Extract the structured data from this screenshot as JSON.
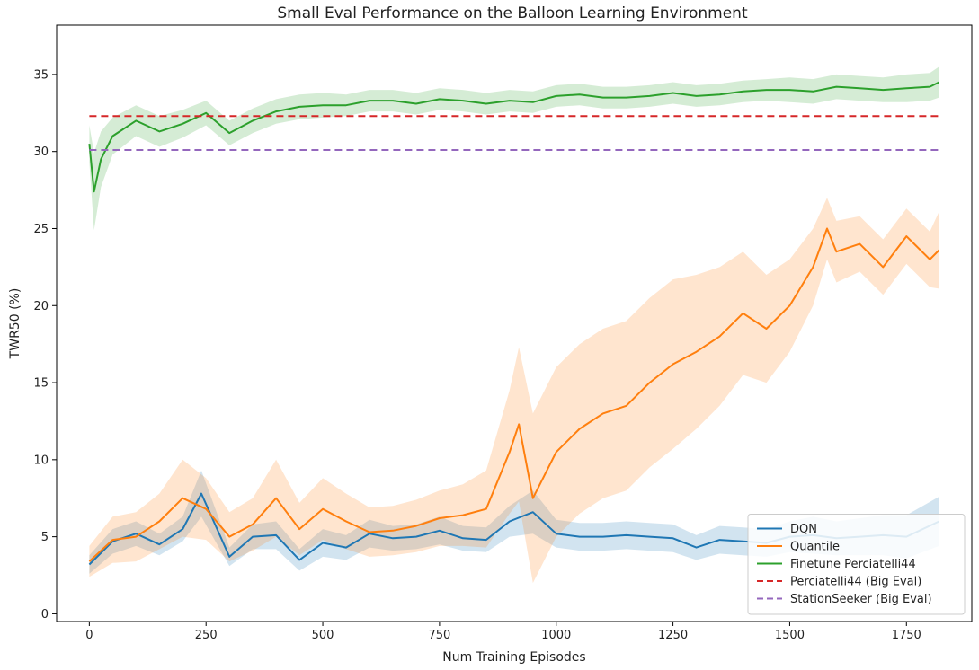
{
  "chart_data": {
    "type": "line",
    "title": "Small Eval Performance on the Balloon Learning Environment",
    "xlabel": "Num Training Episodes",
    "ylabel": "TWR50 (%)",
    "xlim": [
      -70,
      1890
    ],
    "ylim": [
      -0.5,
      38.2
    ],
    "xticks": [
      0,
      250,
      500,
      750,
      1000,
      1250,
      1500,
      1750
    ],
    "yticks": [
      0,
      5,
      10,
      15,
      20,
      25,
      30,
      35
    ],
    "grid": false,
    "legend_position": "bottom-right",
    "colors": {
      "DQN": "#1f77b4",
      "Quantile": "#ff7f0e",
      "Finetune Perciatelli44": "#2ca02c",
      "Perciatelli44 (Big Eval)": "#d62728",
      "StationSeeker (Big Eval)": "#9467bd"
    },
    "series": [
      {
        "name": "DQN",
        "style": "solid",
        "x": [
          0,
          50,
          100,
          150,
          200,
          240,
          300,
          350,
          400,
          450,
          500,
          550,
          600,
          650,
          700,
          750,
          800,
          850,
          900,
          950,
          1000,
          1050,
          1100,
          1150,
          1200,
          1250,
          1300,
          1350,
          1400,
          1450,
          1500,
          1550,
          1600,
          1650,
          1700,
          1750,
          1820
        ],
        "y": [
          3.2,
          4.7,
          5.2,
          4.5,
          5.5,
          7.8,
          3.7,
          5.0,
          5.1,
          3.5,
          4.6,
          4.3,
          5.2,
          4.9,
          5.0,
          5.4,
          4.9,
          4.8,
          6.0,
          6.6,
          5.2,
          5.0,
          5.0,
          5.1,
          5.0,
          4.9,
          4.3,
          4.8,
          4.7,
          4.6,
          5.0,
          5.1,
          4.9,
          5.0,
          5.1,
          5.0,
          6.0
        ],
        "band": [
          0.6,
          0.8,
          0.8,
          0.7,
          0.8,
          1.5,
          0.6,
          0.8,
          0.9,
          0.7,
          0.9,
          0.8,
          0.9,
          0.8,
          0.8,
          0.9,
          0.8,
          0.8,
          1.0,
          1.4,
          0.9,
          0.9,
          0.9,
          0.9,
          0.9,
          0.9,
          0.8,
          0.9,
          0.9,
          0.9,
          1.0,
          1.2,
          1.1,
          1.2,
          1.3,
          1.4,
          1.6
        ]
      },
      {
        "name": "Quantile",
        "style": "solid",
        "x": [
          0,
          50,
          100,
          150,
          200,
          250,
          300,
          350,
          400,
          450,
          500,
          550,
          600,
          650,
          700,
          750,
          800,
          850,
          900,
          920,
          950,
          1000,
          1050,
          1100,
          1150,
          1200,
          1250,
          1300,
          1350,
          1400,
          1450,
          1500,
          1550,
          1580,
          1600,
          1650,
          1700,
          1750,
          1800,
          1820
        ],
        "y": [
          3.4,
          4.8,
          5.0,
          6.0,
          7.5,
          6.8,
          5.0,
          5.8,
          7.5,
          5.5,
          6.8,
          6.0,
          5.3,
          5.4,
          5.7,
          6.2,
          6.4,
          6.8,
          10.5,
          12.3,
          7.5,
          10.5,
          12.0,
          13.0,
          13.5,
          15.0,
          16.2,
          17.0,
          18.0,
          19.5,
          18.5,
          20.0,
          22.5,
          25.0,
          23.5,
          24.0,
          22.5,
          24.5,
          23.0,
          23.6
        ],
        "band": [
          1.0,
          1.5,
          1.6,
          1.8,
          2.5,
          2.0,
          1.6,
          1.7,
          2.5,
          1.7,
          2.0,
          1.8,
          1.6,
          1.6,
          1.7,
          1.8,
          2.0,
          2.5,
          4.0,
          5.0,
          5.5,
          5.5,
          5.5,
          5.5,
          5.5,
          5.5,
          5.5,
          5.0,
          4.5,
          4.0,
          3.5,
          3.0,
          2.5,
          2.0,
          2.0,
          1.8,
          1.8,
          1.8,
          1.8,
          2.5
        ]
      },
      {
        "name": "Finetune Perciatelli44",
        "style": "solid",
        "x": [
          0,
          10,
          25,
          50,
          100,
          150,
          200,
          250,
          300,
          350,
          400,
          450,
          500,
          550,
          600,
          650,
          700,
          750,
          800,
          850,
          900,
          950,
          1000,
          1050,
          1100,
          1150,
          1200,
          1250,
          1300,
          1350,
          1400,
          1450,
          1500,
          1550,
          1600,
          1650,
          1700,
          1750,
          1800,
          1820
        ],
        "y": [
          30.5,
          27.4,
          29.5,
          31.0,
          32.0,
          31.3,
          31.8,
          32.5,
          31.2,
          32.0,
          32.6,
          32.9,
          33.0,
          33.0,
          33.3,
          33.3,
          33.1,
          33.4,
          33.3,
          33.1,
          33.3,
          33.2,
          33.6,
          33.7,
          33.5,
          33.5,
          33.6,
          33.8,
          33.6,
          33.7,
          33.9,
          34.0,
          34.0,
          33.9,
          34.2,
          34.1,
          34.0,
          34.1,
          34.2,
          34.5
        ],
        "band": [
          1.2,
          2.5,
          1.8,
          1.2,
          1.0,
          1.0,
          0.9,
          0.8,
          0.8,
          0.8,
          0.8,
          0.8,
          0.8,
          0.7,
          0.7,
          0.7,
          0.7,
          0.7,
          0.7,
          0.7,
          0.7,
          0.7,
          0.7,
          0.7,
          0.7,
          0.7,
          0.7,
          0.7,
          0.7,
          0.7,
          0.7,
          0.7,
          0.8,
          0.8,
          0.8,
          0.8,
          0.8,
          0.9,
          0.9,
          1.0
        ]
      },
      {
        "name": "Perciatelli44 (Big Eval)",
        "style": "dashed",
        "x": [
          0,
          1820
        ],
        "y": [
          32.3,
          32.3
        ]
      },
      {
        "name": "StationSeeker (Big Eval)",
        "style": "dashed",
        "x": [
          0,
          1820
        ],
        "y": [
          30.1,
          30.1
        ]
      }
    ]
  }
}
